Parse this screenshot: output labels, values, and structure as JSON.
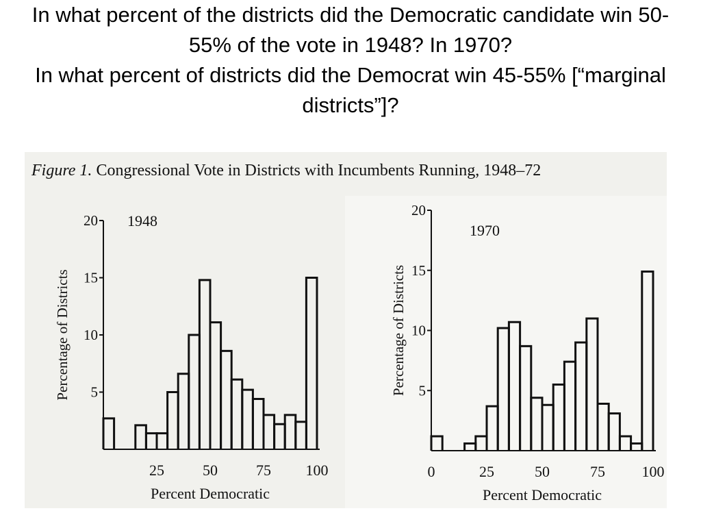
{
  "slide": {
    "question_1": "In what percent of the districts did the Democratic candidate win 50-55% of the vote in 1948?  In 1970?",
    "question_2": "In what percent of districts did the Democrat win 45-55% [“marginal districts”]?"
  },
  "figure": {
    "label": "Figure 1.",
    "caption": "Congressional Vote in Districts with Incumbents Running, 1948–72"
  },
  "chart_data": [
    {
      "type": "histogram",
      "year_label": "1948",
      "xlabel": "Percent Democratic",
      "ylabel": "Percentage of Districts",
      "xlim": [
        0,
        100
      ],
      "ylim": [
        0,
        20
      ],
      "x_ticks": [
        25,
        50,
        75,
        100
      ],
      "y_ticks": [
        5,
        10,
        15,
        20
      ],
      "bins": [
        {
          "from": 0,
          "to": 5,
          "value": 2.7
        },
        {
          "from": 5,
          "to": 10,
          "value": 0
        },
        {
          "from": 10,
          "to": 15,
          "value": 0
        },
        {
          "from": 15,
          "to": 20,
          "value": 2.1
        },
        {
          "from": 20,
          "to": 25,
          "value": 1.4
        },
        {
          "from": 25,
          "to": 30,
          "value": 1.4
        },
        {
          "from": 30,
          "to": 35,
          "value": 5.0
        },
        {
          "from": 35,
          "to": 40,
          "value": 6.6
        },
        {
          "from": 40,
          "to": 45,
          "value": 10.0
        },
        {
          "from": 45,
          "to": 50,
          "value": 14.8
        },
        {
          "from": 50,
          "to": 55,
          "value": 11.1
        },
        {
          "from": 55,
          "to": 60,
          "value": 8.6
        },
        {
          "from": 60,
          "to": 65,
          "value": 6.1
        },
        {
          "from": 65,
          "to": 70,
          "value": 5.2
        },
        {
          "from": 70,
          "to": 75,
          "value": 4.4
        },
        {
          "from": 75,
          "to": 80,
          "value": 3.0
        },
        {
          "from": 80,
          "to": 85,
          "value": 2.2
        },
        {
          "from": 85,
          "to": 90,
          "value": 3.0
        },
        {
          "from": 90,
          "to": 95,
          "value": 2.4
        },
        {
          "from": 95,
          "to": 100,
          "value": 15.0
        }
      ]
    },
    {
      "type": "histogram",
      "year_label": "1970",
      "xlabel": "Percent Democratic",
      "ylabel": "Percentage of Districts",
      "xlim": [
        0,
        100
      ],
      "ylim": [
        0,
        20
      ],
      "x_ticks": [
        0,
        25,
        50,
        75,
        100
      ],
      "y_ticks": [
        5,
        10,
        15,
        20
      ],
      "bins": [
        {
          "from": 0,
          "to": 5,
          "value": 1.2
        },
        {
          "from": 5,
          "to": 10,
          "value": 0
        },
        {
          "from": 10,
          "to": 15,
          "value": 0
        },
        {
          "from": 15,
          "to": 20,
          "value": 0.6
        },
        {
          "from": 20,
          "to": 25,
          "value": 1.2
        },
        {
          "from": 25,
          "to": 30,
          "value": 3.7
        },
        {
          "from": 30,
          "to": 35,
          "value": 10.2
        },
        {
          "from": 35,
          "to": 40,
          "value": 10.7
        },
        {
          "from": 40,
          "to": 45,
          "value": 8.7
        },
        {
          "from": 45,
          "to": 50,
          "value": 4.4
        },
        {
          "from": 50,
          "to": 55,
          "value": 3.8
        },
        {
          "from": 55,
          "to": 60,
          "value": 5.5
        },
        {
          "from": 60,
          "to": 65,
          "value": 7.4
        },
        {
          "from": 65,
          "to": 70,
          "value": 9.0
        },
        {
          "from": 70,
          "to": 75,
          "value": 11.0
        },
        {
          "from": 75,
          "to": 80,
          "value": 3.9
        },
        {
          "from": 80,
          "to": 85,
          "value": 3.1
        },
        {
          "from": 85,
          "to": 90,
          "value": 1.2
        },
        {
          "from": 90,
          "to": 95,
          "value": 0.6
        },
        {
          "from": 95,
          "to": 100,
          "value": 14.9
        }
      ]
    }
  ]
}
